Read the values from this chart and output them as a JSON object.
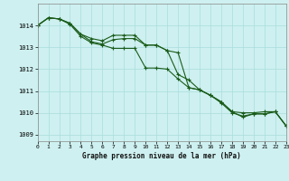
{
  "title": "Graphe pression niveau de la mer (hPa)",
  "background_color": "#cef0f0",
  "grid_color": "#aadddd",
  "line_color": "#1a5c1a",
  "xlim": [
    0,
    23
  ],
  "ylim": [
    1008.7,
    1015.0
  ],
  "yticks": [
    1009,
    1010,
    1011,
    1012,
    1013,
    1014
  ],
  "xticks": [
    0,
    1,
    2,
    3,
    4,
    5,
    6,
    7,
    8,
    9,
    10,
    11,
    12,
    13,
    14,
    15,
    16,
    17,
    18,
    19,
    20,
    21,
    22,
    23
  ],
  "series1": [
    1014.0,
    1014.35,
    1014.3,
    1014.1,
    1013.6,
    1013.4,
    1013.3,
    1013.55,
    1013.55,
    1013.55,
    1013.1,
    1013.1,
    1012.85,
    1012.75,
    1011.15,
    1011.05,
    1010.8,
    1010.5,
    1010.05,
    1010.0,
    1010.0,
    1010.05,
    1010.05,
    1009.4
  ],
  "series2": [
    1014.0,
    1014.35,
    1014.3,
    1014.1,
    1013.6,
    1013.25,
    1013.15,
    1013.35,
    1013.4,
    1013.4,
    1013.1,
    1013.1,
    1012.85,
    1011.75,
    1011.5,
    1011.05,
    1010.8,
    1010.5,
    1010.05,
    1009.8,
    1009.95,
    1009.95,
    1010.05,
    1009.4
  ],
  "series3": [
    1014.0,
    1014.35,
    1014.3,
    1014.05,
    1013.5,
    1013.2,
    1013.1,
    1012.95,
    1012.95,
    1012.95,
    1012.05,
    1012.05,
    1012.0,
    1011.55,
    1011.15,
    1011.05,
    1010.8,
    1010.45,
    1010.0,
    1009.85,
    1009.95,
    1009.95,
    1010.05,
    1009.4
  ]
}
